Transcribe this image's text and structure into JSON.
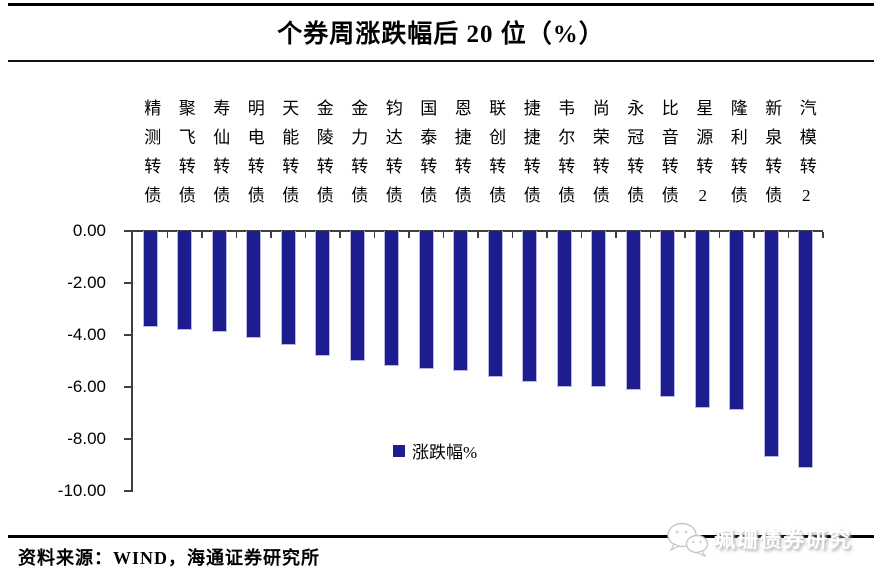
{
  "title": "个券周涨跌幅后 20 位（%）",
  "chart_data": {
    "type": "bar",
    "title": "个券周涨跌幅后 20 位（%）",
    "categories": [
      "精测转债",
      "聚飞转债",
      "寿仙转债",
      "明电转债",
      "天能转债",
      "金陵转债",
      "金力转债",
      "钧达转债",
      "国泰转债",
      "恩捷转债",
      "联创转债",
      "捷捷转债",
      "韦尔转债",
      "尚荣转债",
      "永冠转债",
      "比音转债",
      "星源转2",
      "隆利转债",
      "新泉转债",
      "汽模转2"
    ],
    "series": [
      {
        "name": "涨跌幅%",
        "values": [
          -3.7,
          -3.8,
          -3.9,
          -4.1,
          -4.4,
          -4.8,
          -5.0,
          -5.2,
          -5.3,
          -5.4,
          -5.6,
          -5.8,
          -6.0,
          -6.0,
          -6.1,
          -6.4,
          -6.8,
          -6.9,
          -8.7,
          -9.1
        ]
      }
    ],
    "legend": "涨跌幅%",
    "legend_position": "inside-bottom-center",
    "xlabel": "",
    "ylabel": "",
    "ylim": [
      -10,
      0
    ],
    "ytick_step": 2,
    "ytick_labels": [
      "0.00",
      "-2.00",
      "-4.00",
      "-6.00",
      "-8.00",
      "-10.00"
    ],
    "grid": false,
    "bar_color": "#1d1d8f",
    "axis_color": "#3f3f3f",
    "category_label_position": "top-vertical"
  },
  "footer": {
    "source": "资料来源：WIND，海通证券研究所",
    "watermark": "珮珊债券研究",
    "watermark_icon": "wechat-icon"
  }
}
